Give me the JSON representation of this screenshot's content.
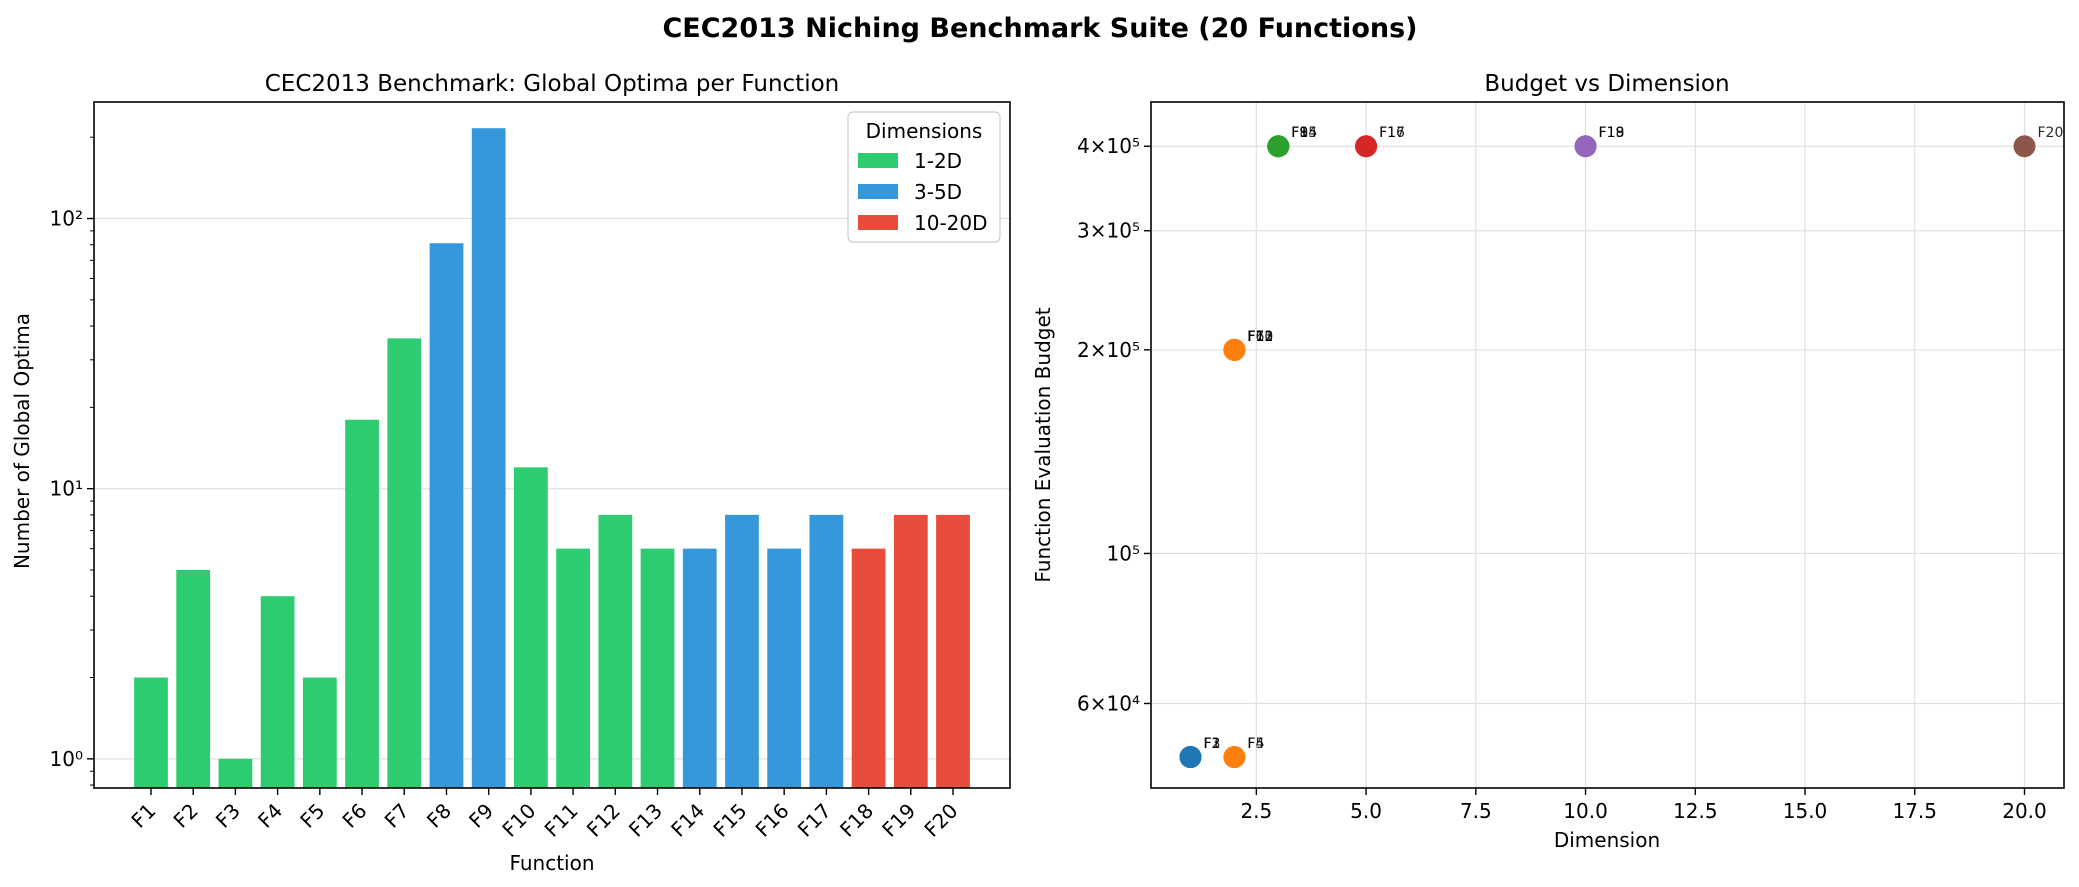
{
  "figure": {
    "suptitle": "CEC2013 Niching Benchmark Suite (20 Functions)"
  },
  "chart_data": [
    {
      "type": "bar",
      "title": "CEC2013 Benchmark: Global Optima per Function",
      "xlabel": "Function",
      "ylabel": "Number of Global Optima",
      "yscale": "log",
      "ylim": [
        0.78,
        270
      ],
      "yticks": [
        {
          "value": 1,
          "label": "10⁰"
        },
        {
          "value": 10,
          "label": "10¹"
        },
        {
          "value": 100,
          "label": "10²"
        }
      ],
      "categories": [
        "F1",
        "F2",
        "F3",
        "F4",
        "F5",
        "F6",
        "F7",
        "F8",
        "F9",
        "F10",
        "F11",
        "F12",
        "F13",
        "F14",
        "F15",
        "F16",
        "F17",
        "F18",
        "F19",
        "F20"
      ],
      "values": [
        2,
        5,
        1,
        4,
        2,
        18,
        36,
        81,
        216,
        12,
        6,
        8,
        6,
        6,
        8,
        6,
        8,
        6,
        8,
        8
      ],
      "groups": [
        "1-2D",
        "1-2D",
        "1-2D",
        "1-2D",
        "1-2D",
        "1-2D",
        "1-2D",
        "3-5D",
        "3-5D",
        "1-2D",
        "1-2D",
        "1-2D",
        "1-2D",
        "3-5D",
        "3-5D",
        "3-5D",
        "3-5D",
        "10-20D",
        "10-20D",
        "10-20D"
      ],
      "legend": {
        "title": "Dimensions",
        "position": "top-right",
        "entries": [
          {
            "label": "1-2D",
            "color": "#2ecc71"
          },
          {
            "label": "3-5D",
            "color": "#3498db"
          },
          {
            "label": "10-20D",
            "color": "#e74c3c"
          }
        ]
      },
      "grid": true
    },
    {
      "type": "scatter",
      "title": "Budget vs Dimension",
      "xlabel": "Dimension",
      "ylabel": "Function Evaluation Budget",
      "yscale": "log",
      "xlim": [
        0.1,
        20.9
      ],
      "ylim": [
        45000,
        465000
      ],
      "xticks": [
        {
          "value": 2.5,
          "label": "2.5"
        },
        {
          "value": 5,
          "label": "5.0"
        },
        {
          "value": 7.5,
          "label": "7.5"
        },
        {
          "value": 10,
          "label": "10.0"
        },
        {
          "value": 12.5,
          "label": "12.5"
        },
        {
          "value": 15,
          "label": "15.0"
        },
        {
          "value": 17.5,
          "label": "17.5"
        },
        {
          "value": 20,
          "label": "20.0"
        }
      ],
      "yticks": [
        {
          "value": 60000,
          "label": "6×10⁴"
        },
        {
          "value": 100000,
          "label": "10⁵"
        },
        {
          "value": 200000,
          "label": "2×10⁵"
        },
        {
          "value": 300000,
          "label": "3×10⁵"
        },
        {
          "value": 400000,
          "label": "4×10⁵"
        }
      ],
      "points": [
        {
          "label": "F1",
          "x": 1,
          "y": 50000,
          "color": "#1f77b4"
        },
        {
          "label": "F2",
          "x": 1,
          "y": 50000,
          "color": "#1f77b4"
        },
        {
          "label": "F3",
          "x": 1,
          "y": 50000,
          "color": "#1f77b4"
        },
        {
          "label": "F4",
          "x": 2,
          "y": 50000,
          "color": "#ff7f0e"
        },
        {
          "label": "F5",
          "x": 2,
          "y": 50000,
          "color": "#ff7f0e"
        },
        {
          "label": "F6",
          "x": 2,
          "y": 200000,
          "color": "#ff7f0e"
        },
        {
          "label": "F7",
          "x": 2,
          "y": 200000,
          "color": "#ff7f0e"
        },
        {
          "label": "F10",
          "x": 2,
          "y": 200000,
          "color": "#ff7f0e"
        },
        {
          "label": "F11",
          "x": 2,
          "y": 200000,
          "color": "#ff7f0e"
        },
        {
          "label": "F12",
          "x": 2,
          "y": 200000,
          "color": "#ff7f0e"
        },
        {
          "label": "F13",
          "x": 2,
          "y": 200000,
          "color": "#ff7f0e"
        },
        {
          "label": "F8",
          "x": 3,
          "y": 400000,
          "color": "#2ca02c"
        },
        {
          "label": "F9",
          "x": 3,
          "y": 400000,
          "color": "#2ca02c"
        },
        {
          "label": "F14",
          "x": 3,
          "y": 400000,
          "color": "#2ca02c"
        },
        {
          "label": "F15",
          "x": 3,
          "y": 400000,
          "color": "#2ca02c"
        },
        {
          "label": "F16",
          "x": 5,
          "y": 400000,
          "color": "#d62728"
        },
        {
          "label": "F17",
          "x": 5,
          "y": 400000,
          "color": "#d62728"
        },
        {
          "label": "F18",
          "x": 10,
          "y": 400000,
          "color": "#9467bd"
        },
        {
          "label": "F19",
          "x": 10,
          "y": 400000,
          "color": "#9467bd"
        },
        {
          "label": "F20",
          "x": 20,
          "y": 400000,
          "color": "#8c564b"
        }
      ],
      "grid": true
    }
  ]
}
